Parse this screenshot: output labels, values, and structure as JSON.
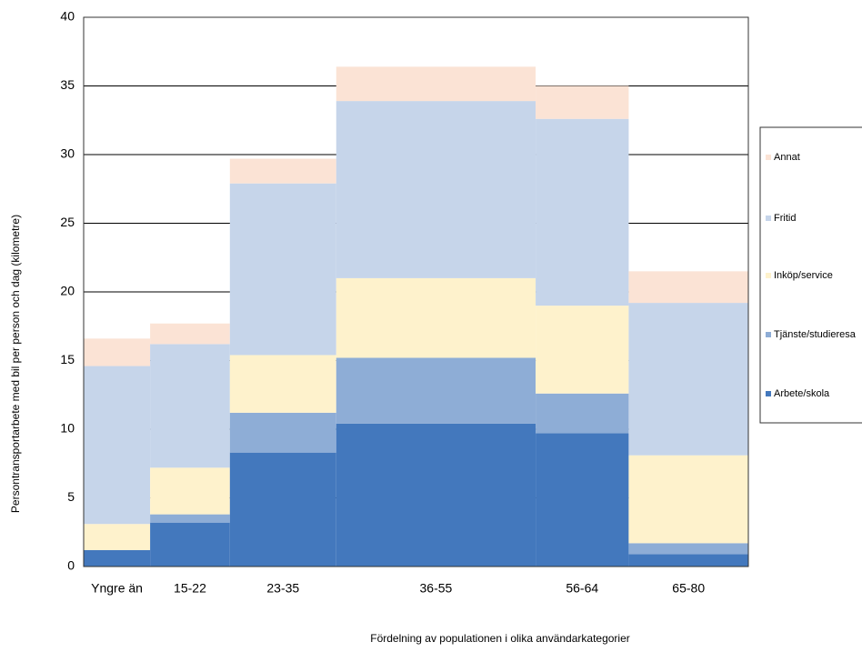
{
  "chart_data": {
    "type": "variable-width-stacked-bar",
    "y_label": "Persontransportarbete med bil per person och dag (kilometre)",
    "x_label": "Fördelning  av populationen  i olika användarkategorier",
    "categories": [
      "Yngre än",
      "15-22",
      "23-35",
      "36-55",
      "56-64",
      "65-80"
    ],
    "widths": [
      10,
      12,
      16,
      30,
      14,
      18
    ],
    "series": [
      {
        "name": "Arbete/skola",
        "color": "#4378bd",
        "values": [
          1.2,
          3.2,
          8.3,
          10.4,
          9.7,
          0.9
        ]
      },
      {
        "name": "Tjänste/studieresa",
        "color": "#8eadd6",
        "values": [
          0,
          0.6,
          2.9,
          4.8,
          2.9,
          0.8
        ]
      },
      {
        "name": "Inköp/service",
        "color": "#fef2cc",
        "values": [
          1.9,
          3.4,
          4.2,
          5.8,
          6.4,
          6.4
        ]
      },
      {
        "name": "Fritid",
        "color": "#c6d5ea",
        "values": [
          11.5,
          9.0,
          12.5,
          12.9,
          13.6,
          11.1
        ]
      },
      {
        "name": "Annat",
        "color": "#fbe3d5",
        "values": [
          2.0,
          1.5,
          1.8,
          2.5,
          2.4,
          2.3
        ]
      }
    ],
    "ylim": [
      0,
      40
    ],
    "yticks": [
      0,
      5,
      10,
      15,
      20,
      25,
      30,
      35,
      40
    ],
    "grid": true
  }
}
